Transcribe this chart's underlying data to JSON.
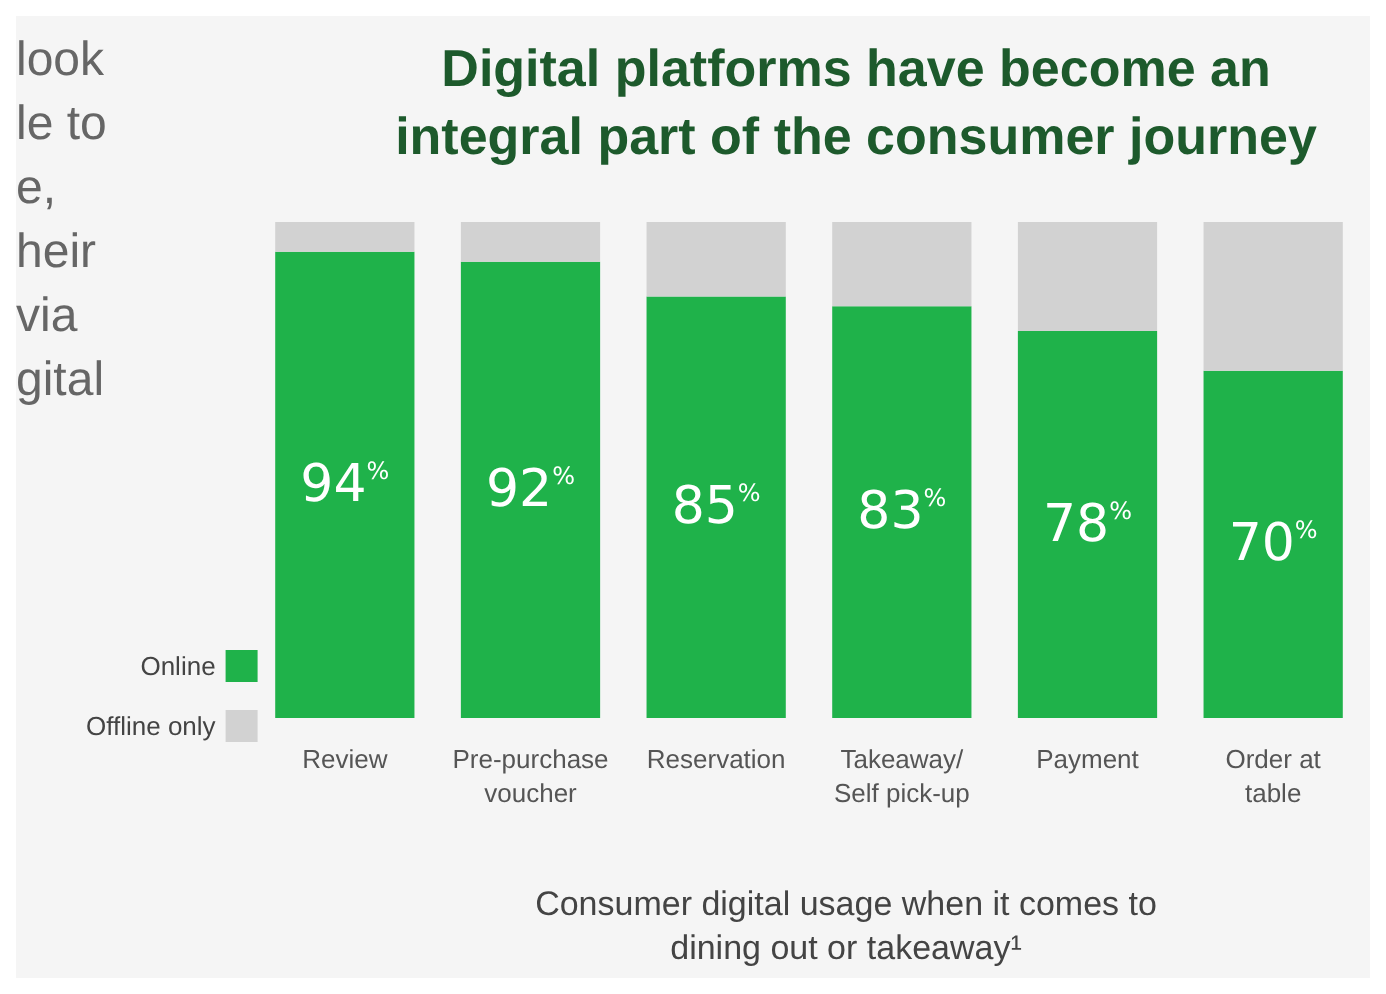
{
  "chart_data": {
    "type": "bar",
    "title": "Digital platforms have become an\nintegral part of the consumer journey",
    "xlabel": "Consumer digital usage when it comes to\ndining out or takeaway¹",
    "categories": [
      "Review",
      "Pre-purchase\nvoucher",
      "Reservation",
      "Takeaway/\nSelf pick-up",
      "Payment",
      "Order at\ntable"
    ],
    "stacked": true,
    "series": [
      {
        "name": "Online",
        "color": "#1fb24a",
        "values": [
          94,
          92,
          85,
          83,
          78,
          70
        ],
        "value_labels": [
          "94$^{%}$",
          "92$^{%}$",
          "85$^{%}$",
          "83$^{%}$",
          "78$^{%}$",
          "70$^{%}$"
        ]
      },
      {
        "name": "Offline only",
        "color": "#d2d2d2",
        "values": [
          6,
          8,
          15,
          17,
          22,
          30
        ]
      }
    ],
    "legend": "left",
    "annotations": [
      "look",
      "le to",
      "e,",
      "heir",
      "via",
      "gital"
    ]
  }
}
